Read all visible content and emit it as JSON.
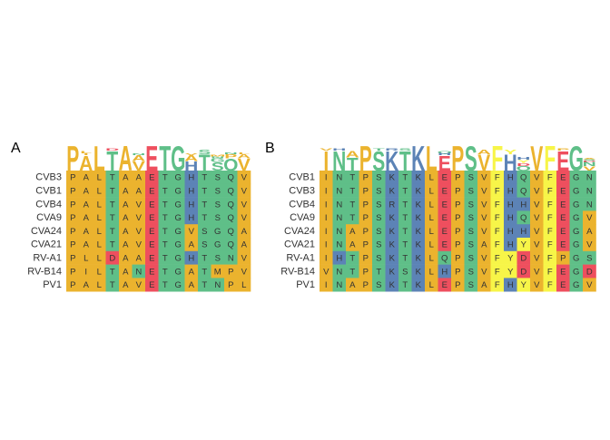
{
  "colors": {
    "orange": "#EBB32E",
    "green": "#5FBF88",
    "blue": "#5C83B6",
    "red": "#EE4F5E",
    "yellow": "#F7F548",
    "text": "#333333"
  },
  "color_groups": {
    "orange": [
      "A",
      "L",
      "I",
      "P",
      "V",
      "M"
    ],
    "green": [
      "T",
      "S",
      "N",
      "Q",
      "G"
    ],
    "blue": [
      "H",
      "K",
      "R"
    ],
    "red": [
      "E",
      "D"
    ],
    "yellow": [
      "F",
      "Y"
    ]
  },
  "panels": [
    {
      "label": "A",
      "logo": "PALTAVETGHTSQV",
      "rows": [
        {
          "name": "CVB3",
          "seq": "PALTAAETGHTSQV"
        },
        {
          "name": "CVB1",
          "seq": "PALTAAETGHTSQV"
        },
        {
          "name": "CVB4",
          "seq": "PALTAVETGHTSQV"
        },
        {
          "name": "CVA9",
          "seq": "PALTAVETGHTSQV"
        },
        {
          "name": "CVA24",
          "seq": "PALTAVETGVSGQA"
        },
        {
          "name": "CVA21",
          "seq": "PALTAVETGASGQA"
        },
        {
          "name": "RV-A1",
          "seq": "PLLDAAETGHTSNV"
        },
        {
          "name": "RV-B14",
          "seq": "PILTANETGATMPV"
        },
        {
          "name": "PV1",
          "seq": "PALTAVETGATNPL"
        }
      ]
    },
    {
      "label": "B",
      "logo": "INTPSKTKLEPSVFHQVFEGN",
      "rows": [
        {
          "name": "CVB1",
          "seq": "INTPSKTKLEPSVFHQVFEGN"
        },
        {
          "name": "CVB3",
          "seq": "INTPSKTKLEPSVFHQVFEGN"
        },
        {
          "name": "CVB4",
          "seq": "INTPSRTKLEPSVFHHVFEGN"
        },
        {
          "name": "CVA9",
          "seq": "INTPSKTKLEPSVFHQVFEGV"
        },
        {
          "name": "CVA24",
          "seq": "INAPSKTKLEPSVFHHVFEGA"
        },
        {
          "name": "CVA21",
          "seq": "INAPSKTKLEPSAFHYVFEGV"
        },
        {
          "name": "RV-A1",
          "seq": "IHTPSKTKLQPSVFYDVFPGS"
        },
        {
          "name": "RV-B14",
          "seq": "VNTPTKSKLHPSVFYDVFEGD"
        },
        {
          "name": "PV1",
          "seq": "INAPSKTKLEPSAFHYVFEGV"
        }
      ]
    }
  ]
}
